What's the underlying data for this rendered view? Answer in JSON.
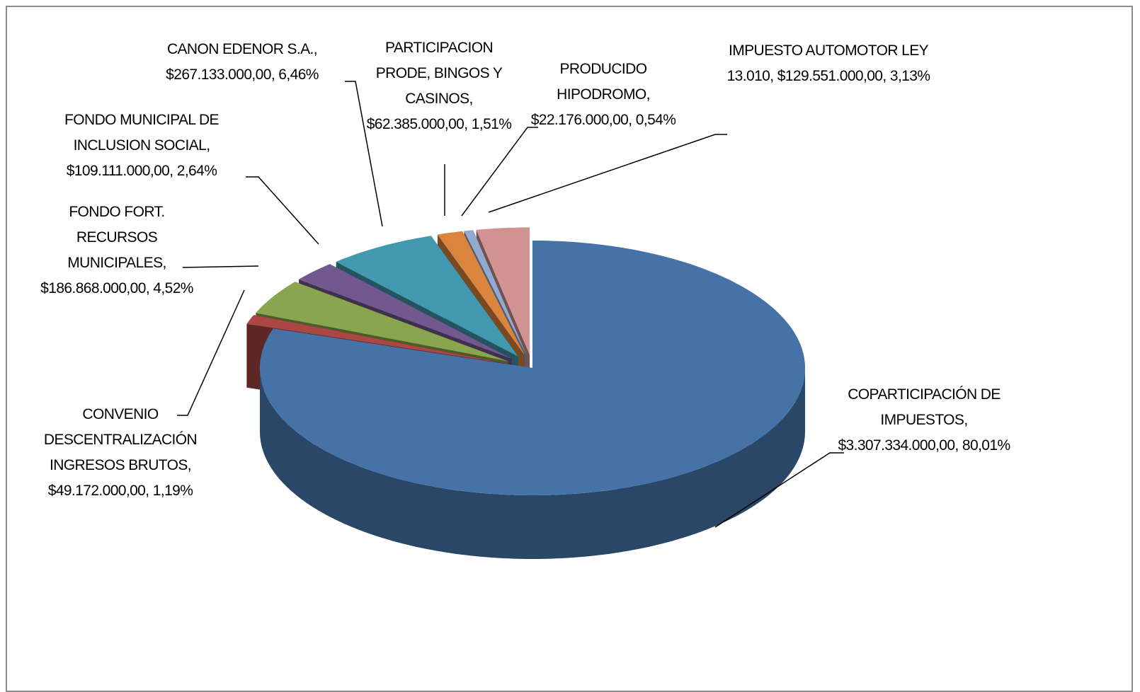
{
  "chart_data": {
    "type": "pie3d",
    "categories": [
      "COPARTICIPACIÓN DE IMPUESTOS",
      "CONVENIO DESCENTRALIZACIÓN INGRESOS BRUTOS",
      "FONDO FORT. RECURSOS MUNICIPALES",
      "FONDO MUNICIPAL DE INCLUSION SOCIAL",
      "CANON EDENOR S.A.",
      "PARTICIPACION PRODE, BINGOS Y CASINOS",
      "PRODUCIDO HIPODROMO",
      "IMPUESTO AUTOMOTOR LEY 13.010"
    ],
    "values": [
      3307334000,
      49172000,
      186868000,
      109111000,
      267133000,
      62385000,
      22176000,
      129551000
    ],
    "value_labels": [
      "$3.307.334.000,00",
      "$49.172.000,00",
      "$186.868.000,00",
      "$109.111.000,00",
      "$267.133.000,00",
      "$62.385.000,00",
      "$22.176.000,00",
      "$129.551.000,00"
    ],
    "percents": [
      80.01,
      1.19,
      4.52,
      2.64,
      6.46,
      1.51,
      0.54,
      3.13
    ],
    "percent_labels": [
      "80,01%",
      "1,19%",
      "4,52%",
      "2,64%",
      "6,46%",
      "1,51%",
      "0,54%",
      "3,13%"
    ],
    "label_separator": ", ",
    "colors": [
      "#4572a7",
      "#aa4643",
      "#89a54e",
      "#71588f",
      "#4198af",
      "#db843d",
      "#93a9cf",
      "#d19392"
    ]
  }
}
